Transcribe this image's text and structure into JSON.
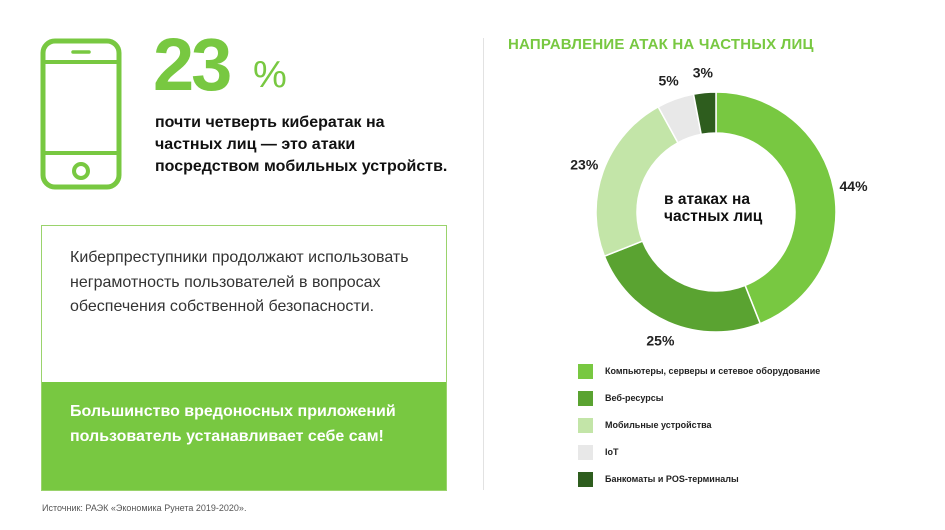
{
  "stat": {
    "value": "23",
    "unit": "%",
    "text": "почти четверть кибератак на частных лиц — это атаки посредством мобильных устройств."
  },
  "info_box": {
    "text": "Киберпреступники продолжают использовать неграмотность пользователей в вопросах обеспечения собственной безопасности.",
    "highlight": "Большинство вредоносных приложений пользователь устанавливает себе сам!"
  },
  "source": "Источник: РАЭК «Экономика Рунета 2019-2020».",
  "icons": {
    "phone": "smartphone-icon"
  },
  "colors": {
    "accent": "#78c841"
  },
  "chart_data": {
    "type": "pie",
    "title": "НАПРАВЛЕНИЕ АТАК НА ЧАСТНЫХ ЛИЦ",
    "center_label": "в атаках на частных лиц",
    "donut": true,
    "start": "top, clockwise",
    "slices": [
      {
        "label": "Компьютеры, серверы и сетевое оборудование",
        "value": 44,
        "value_label": "44%",
        "color": "#78c841"
      },
      {
        "label": "Веб-ресурсы",
        "value": 25,
        "value_label": "25%",
        "color": "#5aa331"
      },
      {
        "label": "Мобильные устройства",
        "value": 23,
        "value_label": "23%",
        "color": "#c3e5a8"
      },
      {
        "label": "IoT",
        "value": 5,
        "value_label": "5%",
        "color": "#e8e8e8"
      },
      {
        "label": "Банкоматы и POS-терминалы",
        "value": 3,
        "value_label": "3%",
        "color": "#2e5d1e"
      }
    ],
    "legend_position": "bottom"
  }
}
